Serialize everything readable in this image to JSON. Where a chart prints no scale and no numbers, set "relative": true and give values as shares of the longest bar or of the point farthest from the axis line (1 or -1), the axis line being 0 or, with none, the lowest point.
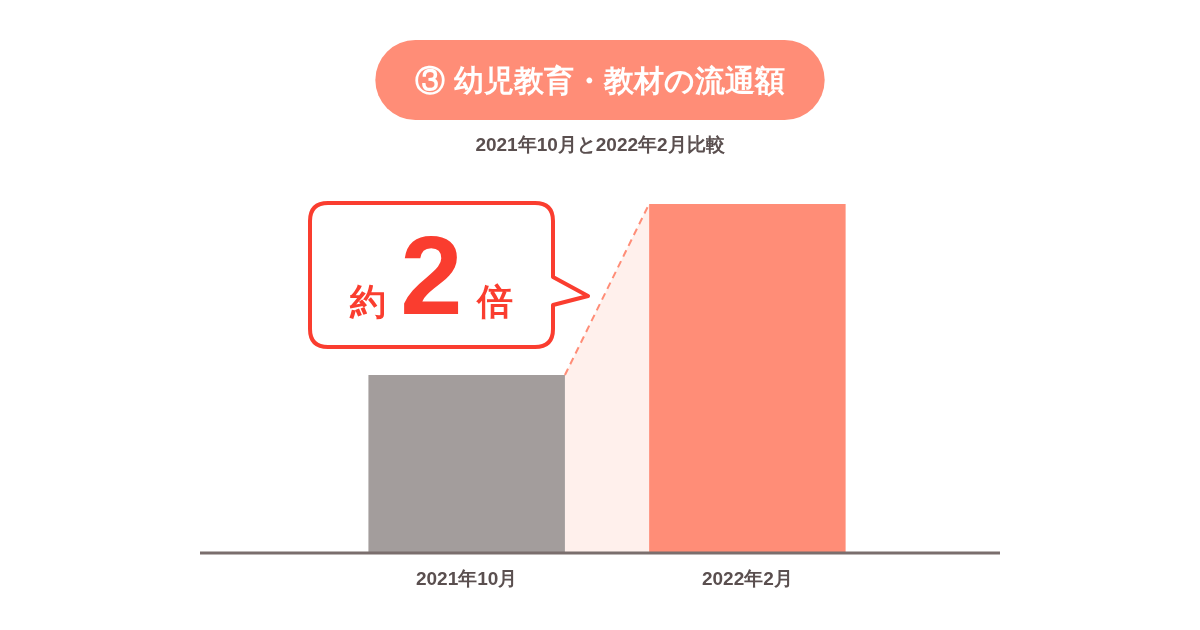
{
  "chart_data": {
    "type": "bar",
    "relative": true,
    "title": "③ 幼児教育・教材の流通額",
    "subtitle": "2021年10月と2022年2月比較",
    "categories": [
      "2021年10月",
      "2022年2月"
    ],
    "values": [
      0.51,
      1
    ],
    "colors": [
      "#a39d9c",
      "#ff8d77"
    ],
    "annotations": [
      "約2倍"
    ]
  }
}
